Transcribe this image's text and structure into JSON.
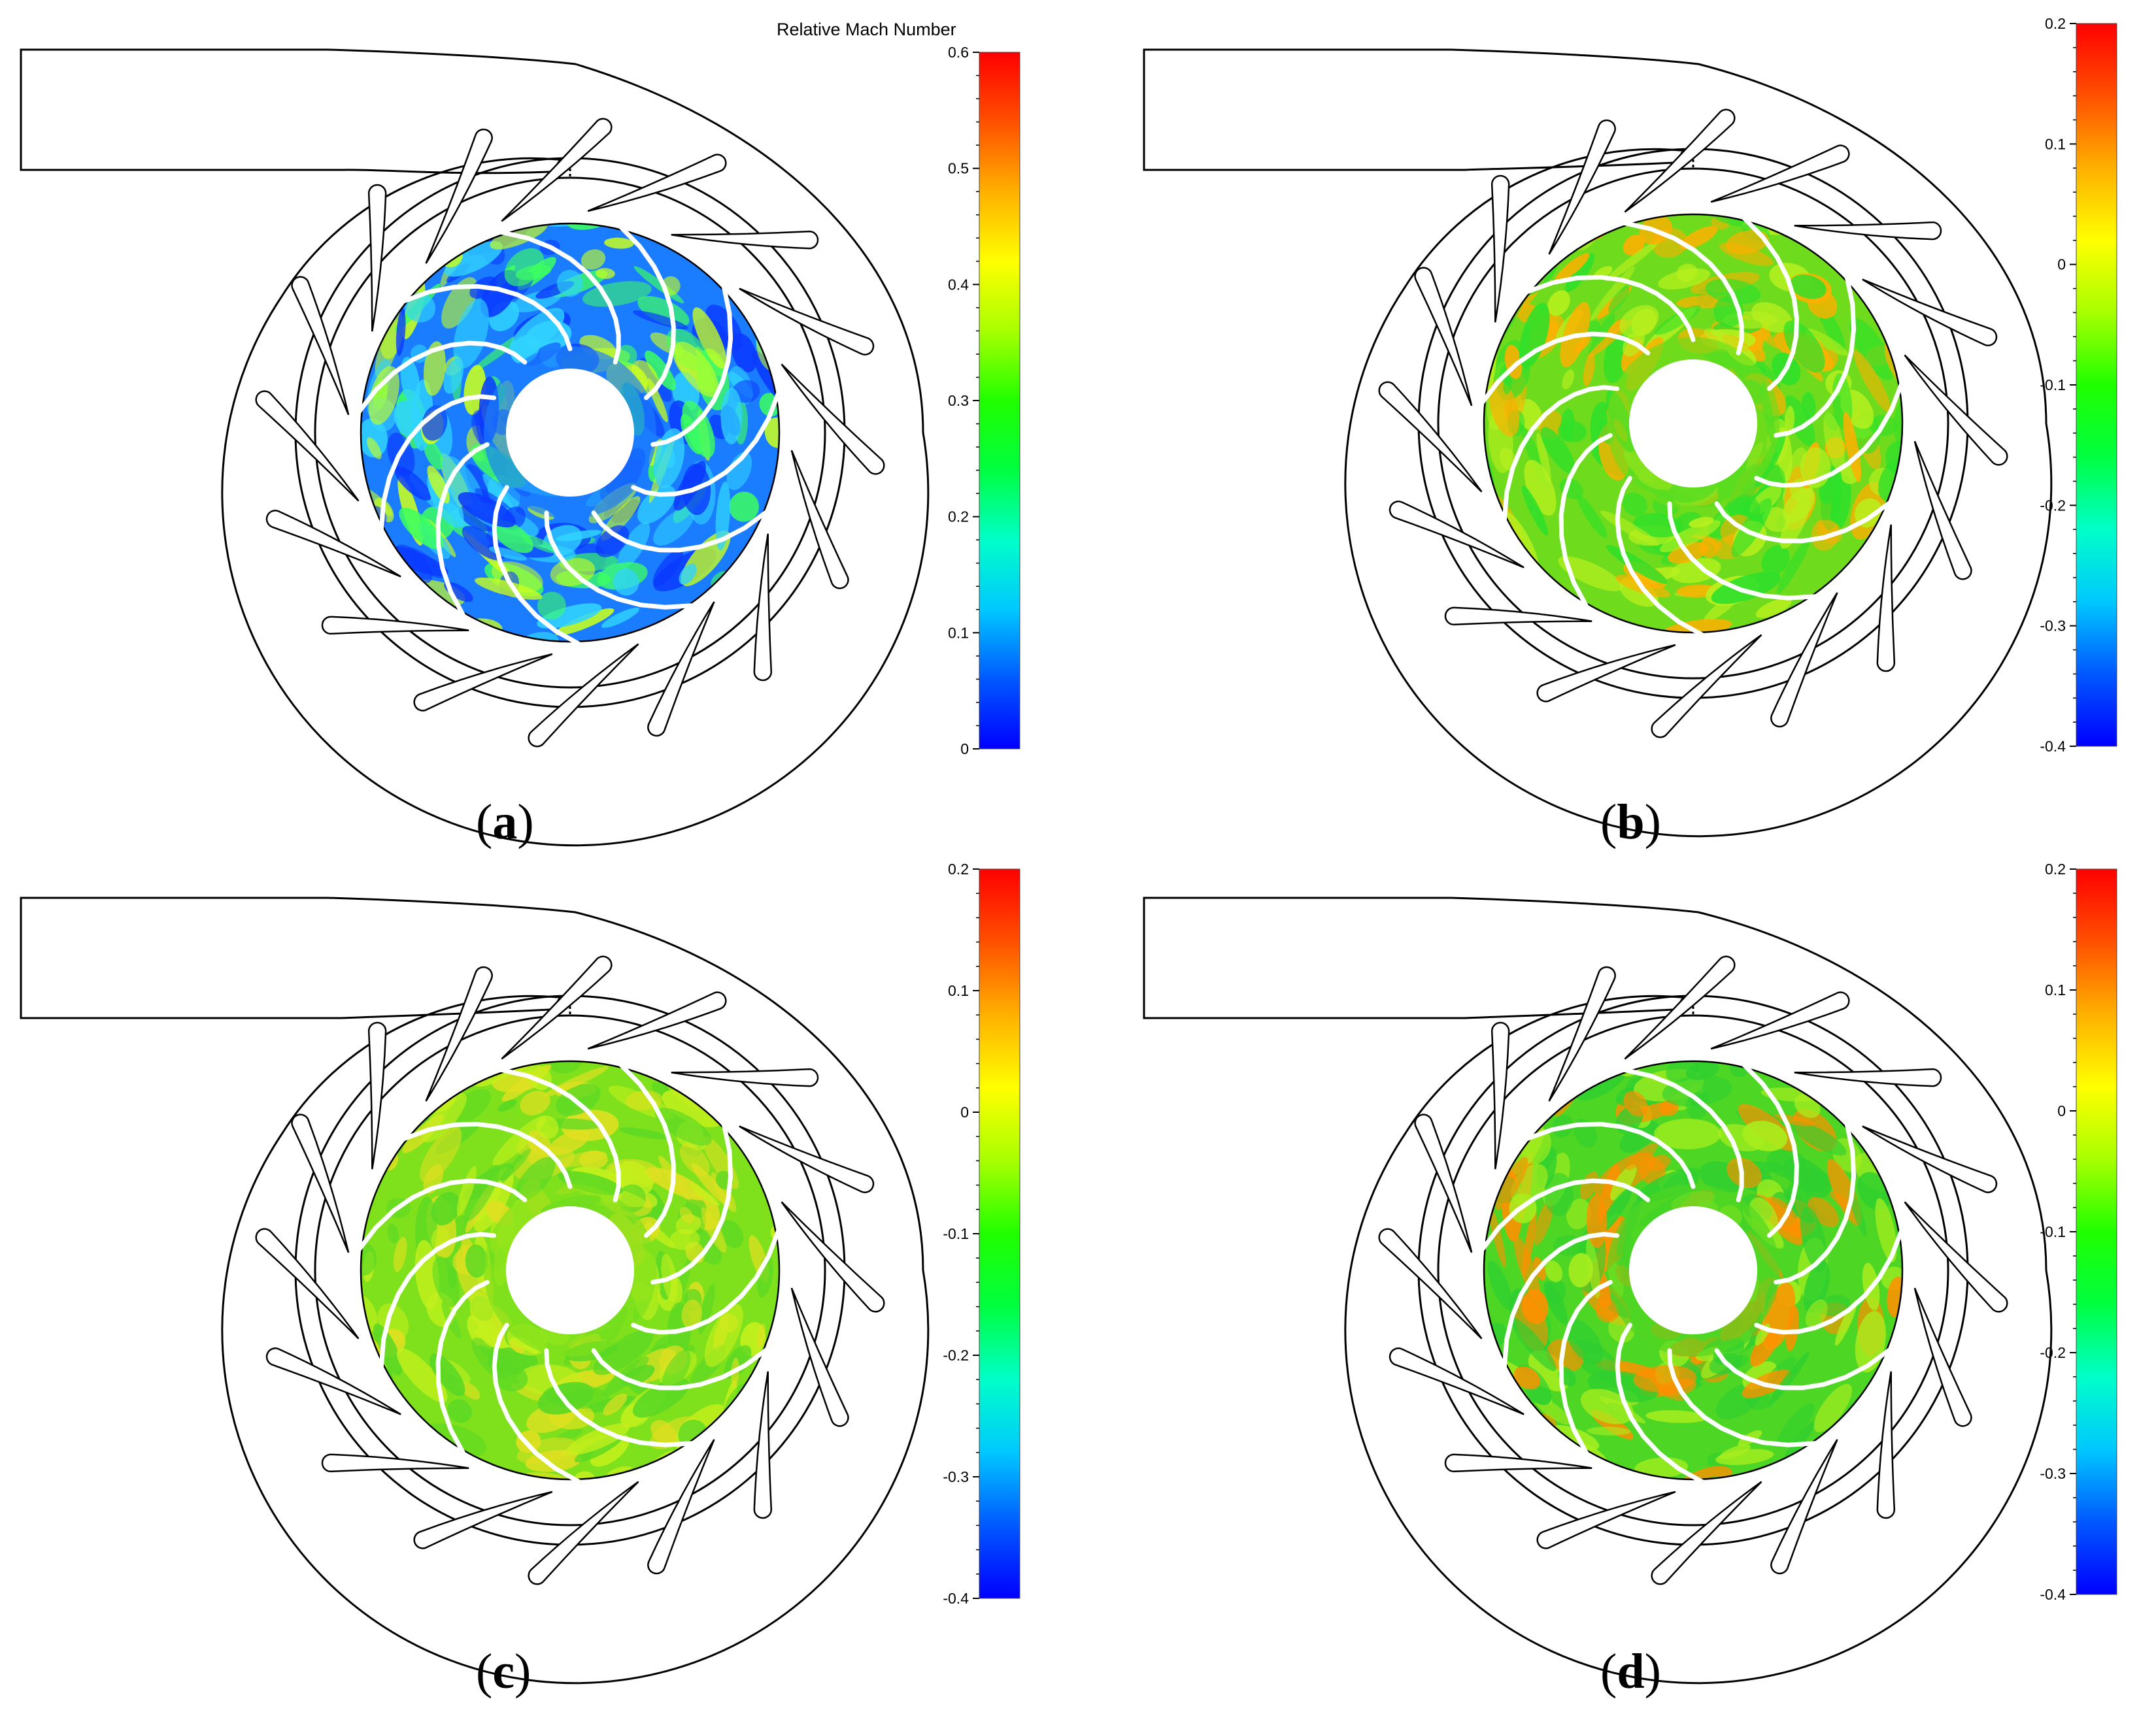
{
  "figure": {
    "panels": [
      {
        "id": "a",
        "caption": "a",
        "colorbar": {
          "title": "Relative Mach Number",
          "ticks": [
            "0.6",
            "0.5",
            "0.4",
            "0.3",
            "0.2",
            "0.1",
            "0"
          ]
        },
        "field_colors": [
          "#1a7cff",
          "#0a3aff",
          "#30d4ff",
          "#3cff60",
          "#c8ff20"
        ]
      },
      {
        "id": "b",
        "caption": "b",
        "colorbar": {
          "title": "",
          "ticks": [
            "0.2",
            "0.1",
            "0",
            "-0.1",
            "-0.2",
            "-0.3",
            "-0.4"
          ]
        },
        "field_colors": [
          "#6edb1c",
          "#2ee02a",
          "#b8f01e",
          "#ffb000"
        ]
      },
      {
        "id": "c",
        "caption": "c",
        "colorbar": {
          "title": "",
          "ticks": [
            "0.2",
            "0.1",
            "0",
            "-0.1",
            "-0.2",
            "-0.3",
            "-0.4"
          ]
        },
        "field_colors": [
          "#7ee11c",
          "#5ad824",
          "#c4f01c",
          "#e0e020"
        ]
      },
      {
        "id": "d",
        "caption": "d",
        "colorbar": {
          "title": "",
          "ticks": [
            "0.2",
            "0.1",
            "0",
            "-0.1",
            "-0.2",
            "-0.3",
            "-0.4"
          ]
        },
        "field_colors": [
          "#4ed624",
          "#2ecf30",
          "#a8ee1e",
          "#ff9000"
        ]
      }
    ],
    "colorbar_gradient": [
      "#0000ff",
      "#0058ff",
      "#00c8ff",
      "#00ffc8",
      "#00ff40",
      "#20ff00",
      "#a8ff00",
      "#ffff00",
      "#ffb000",
      "#ff5000",
      "#ff0000"
    ],
    "line_color": "#000000"
  }
}
